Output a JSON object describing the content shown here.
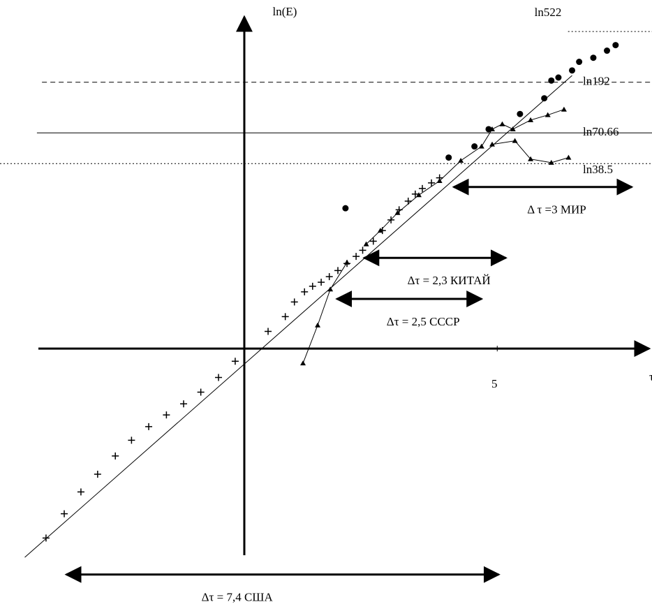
{
  "chart_data": {
    "type": "scatter",
    "y_label": "ln(E)",
    "x_label": "τ",
    "xlim": [
      -4.83,
      8.06
    ],
    "ylim": [
      -5.14,
      6.88
    ],
    "xticks": [
      5
    ],
    "reference_lines": [
      {
        "value": 6.258,
        "label": "ln522",
        "style": "dotted",
        "from": 6.4
      },
      {
        "value": 5.257,
        "label": "ln192",
        "style": "dashed",
        "from": -4.0
      },
      {
        "value": 4.258,
        "label": "ln70.66",
        "style": "solid",
        "from": -4.1
      },
      {
        "value": 3.651,
        "label": "ln38.5",
        "style": "dotted",
        "from": -4.83
      }
    ],
    "fit_line": {
      "x": [
        -4.34,
        6.48
      ],
      "y": [
        -4.12,
        5.39
      ]
    },
    "series": [
      {
        "marker": "plus",
        "connect": false,
        "color": "#000000",
        "x": [
          -3.92,
          -3.56,
          -3.23,
          -2.9,
          -2.55,
          -2.23,
          -1.89,
          -1.54,
          -1.2,
          -0.86,
          -0.51,
          -0.18,
          0.47,
          0.81,
          0.99,
          1.19,
          1.35,
          1.52,
          1.68,
          1.85,
          2.03,
          2.21,
          2.34,
          2.55,
          2.73,
          2.9,
          3.06,
          3.24,
          3.38,
          3.52,
          3.7,
          3.86
        ],
        "values": [
          -3.74,
          -3.26,
          -2.83,
          -2.48,
          -2.12,
          -1.81,
          -1.54,
          -1.31,
          -1.09,
          -0.86,
          -0.57,
          -0.25,
          0.34,
          0.63,
          0.92,
          1.12,
          1.23,
          1.31,
          1.42,
          1.54,
          1.68,
          1.82,
          1.94,
          2.12,
          2.33,
          2.54,
          2.74,
          2.91,
          3.05,
          3.16,
          3.27,
          3.37
        ]
      },
      {
        "marker": "triangle",
        "connect": true,
        "color": "#000000",
        "x": [
          1.16,
          1.45,
          1.7,
          2.03
        ],
        "values": [
          -0.29,
          0.46,
          1.17,
          1.7
        ]
      },
      {
        "marker": "dot",
        "connect": false,
        "color": "#000000",
        "x": [
          2.0
        ],
        "values": [
          2.77
        ]
      },
      {
        "marker": "triangle",
        "connect": true,
        "color": "#000000",
        "x": [
          2.41,
          2.69,
          3.03,
          3.45,
          3.86,
          4.28,
          4.69,
          4.9,
          5.1,
          5.31,
          5.66,
          6.0,
          6.32
        ],
        "values": [
          2.06,
          2.33,
          2.68,
          3.03,
          3.31,
          3.71,
          3.99,
          4.33,
          4.43,
          4.33,
          4.51,
          4.61,
          4.72
        ]
      },
      {
        "marker": "triangle",
        "connect": true,
        "color": "#000000",
        "x": [
          4.9,
          5.35,
          5.66,
          6.07,
          6.41
        ],
        "values": [
          4.03,
          4.1,
          3.74,
          3.67,
          3.77
        ]
      },
      {
        "marker": "dot",
        "connect": false,
        "color": "#000000",
        "x": [
          4.04,
          4.55,
          4.83,
          5.45,
          5.93,
          6.07,
          6.21,
          6.48,
          6.62,
          6.9,
          7.17,
          7.34
        ],
        "values": [
          3.77,
          3.99,
          4.33,
          4.63,
          4.94,
          5.29,
          5.35,
          5.49,
          5.66,
          5.74,
          5.88,
          5.99
        ]
      }
    ],
    "annotations": [
      {
        "text": "Δτ = 7,4 США",
        "x": [
          -3.52,
          5.03
        ],
        "y": -4.46
      },
      {
        "text": "Δτ = 2,5 СССР",
        "x": [
          1.83,
          4.69
        ],
        "y": 0.98
      },
      {
        "text": "Δτ = 2,3 КИТАЙ",
        "x": [
          2.37,
          5.17
        ],
        "y": 1.79
      },
      {
        "text": "Δ τ =3 МИР",
        "x": [
          4.14,
          7.66
        ],
        "y": 3.19
      }
    ]
  }
}
